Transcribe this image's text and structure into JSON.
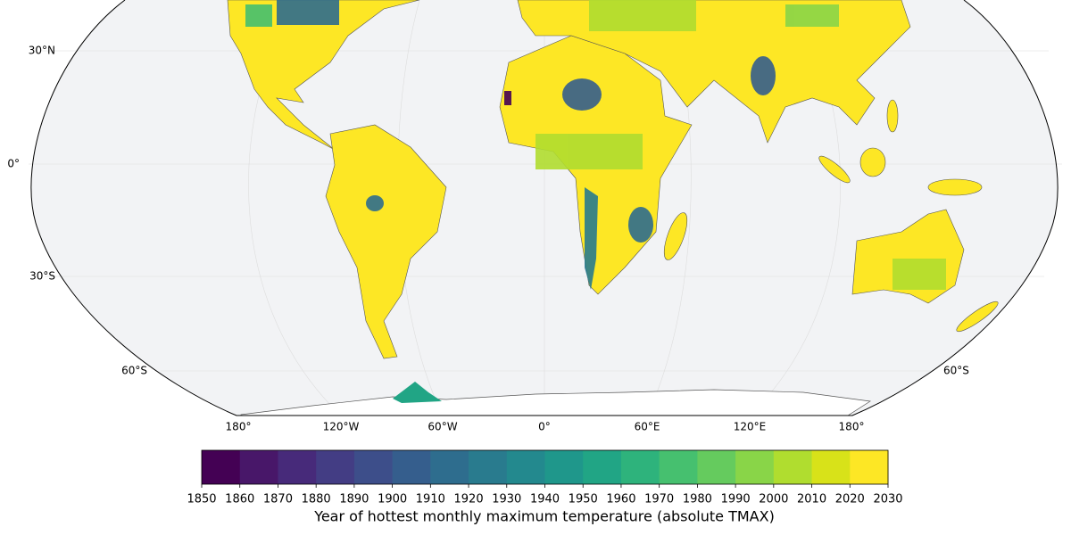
{
  "map": {
    "lat_labels": [
      "30°N",
      "0°",
      "30°S",
      "60°S",
      "60°S"
    ],
    "lon_labels": [
      "180°",
      "120°W",
      "60°W",
      "0°",
      "60°E",
      "120°E",
      "180°"
    ]
  },
  "colorbar": {
    "label": "Year of hottest monthly maximum temperature (absolute TMAX)",
    "ticks": [
      1850,
      1860,
      1870,
      1880,
      1890,
      1900,
      1910,
      1920,
      1930,
      1940,
      1950,
      1960,
      1970,
      1980,
      1990,
      2000,
      2010,
      2020,
      2030
    ],
    "colors": [
      "#440154",
      "#481769",
      "#472a7a",
      "#433d84",
      "#3d4e8a",
      "#355e8d",
      "#2e6d8e",
      "#297b8e",
      "#23898e",
      "#1f978b",
      "#21a585",
      "#2eb37c",
      "#46c06f",
      "#65cb5e",
      "#89d548",
      "#b0dd2f",
      "#d8e219",
      "#fde725"
    ]
  }
}
